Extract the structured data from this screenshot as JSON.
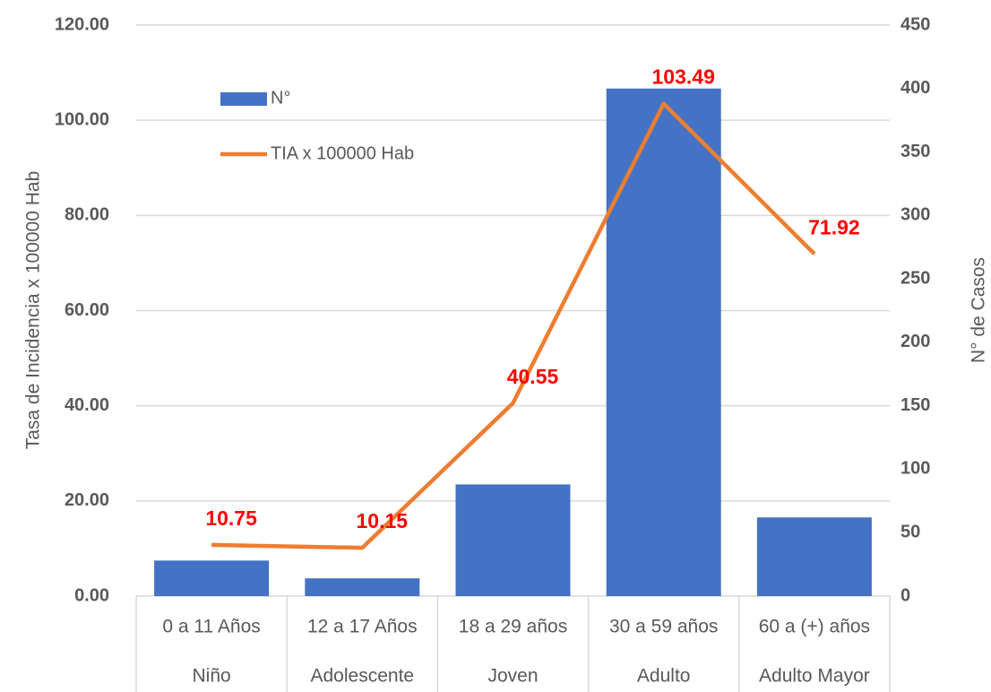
{
  "chart_data": {
    "type": "bar-line",
    "categories": [
      "0 a 11 Años",
      "12 a 17 Años",
      "18 a 29 años",
      "30 a 59 años",
      "60 a (+) años"
    ],
    "category_groups": [
      "Niño",
      "Adolescente",
      "Joven",
      "Adulto",
      "Adulto Mayor"
    ],
    "series": [
      {
        "name": "N°",
        "type": "bar",
        "color": "#4472c4",
        "axis": "y2",
        "values": [
          28,
          14,
          88,
          400,
          62
        ]
      },
      {
        "name": "TIA x 100000 Hab",
        "type": "line",
        "color": "#ed7d31",
        "axis": "y",
        "values": [
          10.75,
          10.15,
          40.55,
          103.49,
          71.92
        ],
        "label_color": "#ff0000"
      }
    ],
    "ylabel": "Tasa de Incidencia x 100000 Hab",
    "y2label": "N° de Casos",
    "ylim": [
      0,
      120
    ],
    "yticks": [
      {
        "value": 0,
        "label": "0.00"
      },
      {
        "value": 20,
        "label": "20.00"
      },
      {
        "value": 40,
        "label": "40.00"
      },
      {
        "value": 60,
        "label": "60.00"
      },
      {
        "value": 80,
        "label": "80.00"
      },
      {
        "value": 100,
        "label": "100.00"
      },
      {
        "value": 120,
        "label": "120.00"
      }
    ],
    "y2lim": [
      0,
      450
    ],
    "y2ticks": [
      0,
      50,
      100,
      150,
      200,
      250,
      300,
      350,
      400,
      450
    ],
    "grid": true,
    "legend_position": "upper-left"
  }
}
